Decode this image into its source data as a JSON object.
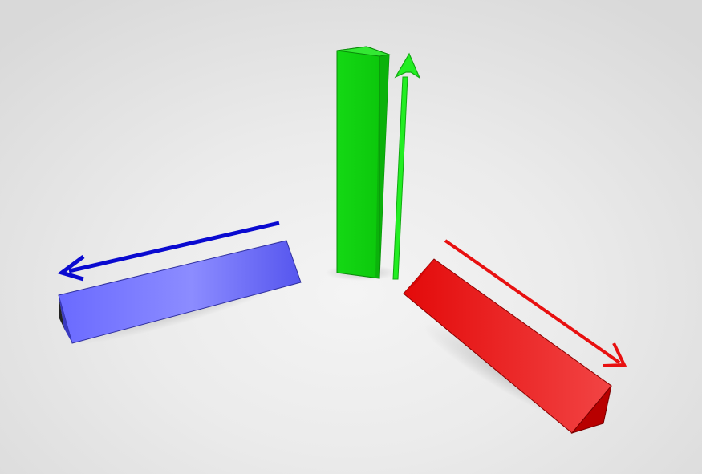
{
  "scene": {
    "description_free": true,
    "background": "#e9e9e9",
    "axes": [
      {
        "id": "x",
        "color": "#e81010",
        "direction": "down-right"
      },
      {
        "id": "y",
        "color": "#10d010",
        "direction": "up"
      },
      {
        "id": "z",
        "color": "#1010c8",
        "direction": "left"
      }
    ],
    "colors": {
      "red_face_light": "#f04040",
      "red_face_dark": "#e00808",
      "red_end": "#b80000",
      "green_face": "#0fd80f",
      "green_side": "#0cc40c",
      "green_top": "#22e022",
      "green_arrow": "#22ee22",
      "blue_face_light": "#8a8aff",
      "blue_face_dark": "#5a5af0",
      "blue_arrow": "#0a0ad0",
      "red_arrow": "#e81010"
    }
  }
}
